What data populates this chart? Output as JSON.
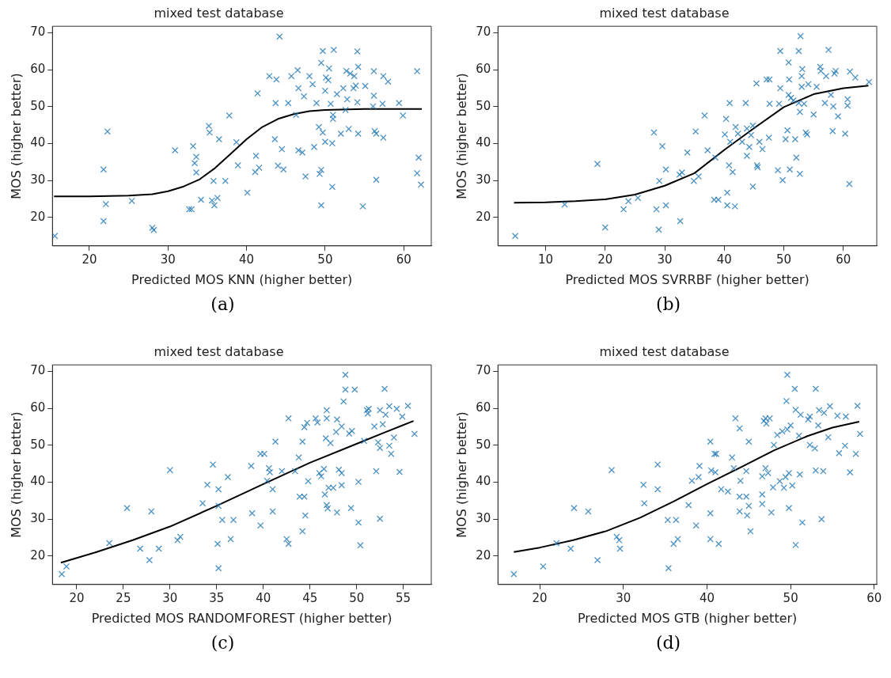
{
  "chart_data": [
    {
      "type": "scatter",
      "title": "mixed test database",
      "xlabel": "Predicted MOS KNN (higher better)",
      "ylabel": "MOS (higher better)",
      "annotations": [
        "(a)"
      ],
      "xlim": [
        15.3,
        63.5
      ],
      "ylim": [
        12.3,
        71.8
      ],
      "xticks": [
        20,
        30,
        40,
        50,
        60
      ],
      "yticks": [
        20,
        30,
        40,
        50,
        60,
        70
      ],
      "grid": false,
      "legend": false,
      "marker": "cross",
      "series": [
        {
          "color": "#1f77b4",
          "x": [
            15.6,
            21.8,
            22.3,
            22.1,
            21.8,
            25.4,
            28.0,
            28.2,
            30.9,
            33.2,
            33.6,
            33.4,
            33.6,
            32.7,
            33.0,
            34.2,
            35.2,
            35.3,
            35.8,
            35.6,
            35.9,
            36.3,
            36.5,
            37.3,
            37.8,
            38.7,
            38.9,
            40.1,
            41.2,
            41.1,
            41.6,
            41.4,
            42.9,
            43.8,
            44.2,
            43.7,
            43.6,
            44.5,
            44.0,
            44.7,
            45.3,
            45.7,
            46.5,
            46.6,
            46.3,
            46.6,
            47.1,
            47.5,
            47.3,
            48.0,
            48.4,
            48.9,
            48.6,
            49.3,
            49.5,
            49.5,
            49.7,
            49.5,
            50.5,
            50.1,
            50.4,
            50.0,
            50.7,
            49.2,
            49.7,
            50.0,
            50.9,
            51.0,
            51.0,
            50.9,
            51.1,
            51.5,
            52.3,
            52.6,
            53.0,
            52.0,
            52.8,
            52.7,
            53.2,
            53.6,
            53.9,
            53.7,
            54.2,
            54.1,
            54.1,
            54.2,
            54.8,
            55.1,
            56.2,
            56.2,
            56.1,
            56.3,
            56.5,
            56.5,
            57.4,
            58.0,
            57.3,
            57.4,
            59.4,
            59.9,
            61.7,
            61.9,
            61.7,
            62.2
          ],
          "values": [
            15.0,
            33.0,
            43.3,
            23.6,
            19.0,
            24.5,
            17.2,
            16.6,
            38.2,
            39.3,
            36.4,
            34.7,
            32.2,
            22.2,
            22.2,
            24.8,
            44.8,
            43.0,
            29.9,
            24.6,
            23.3,
            25.3,
            41.2,
            29.9,
            47.6,
            40.4,
            34.1,
            26.7,
            36.7,
            32.3,
            33.5,
            53.6,
            58.3,
            57.4,
            69.0,
            51.0,
            41.2,
            38.5,
            34.0,
            33.0,
            51.0,
            58.3,
            59.9,
            55.0,
            47.8,
            38.2,
            37.6,
            31.1,
            52.8,
            58.3,
            56.1,
            51.0,
            39.1,
            31.8,
            32.9,
            23.3,
            65.1,
            61.9,
            60.4,
            57.9,
            57.2,
            54.3,
            50.8,
            44.5,
            43.0,
            40.5,
            40.1,
            47.8,
            46.7,
            28.3,
            65.4,
            53.4,
            55.0,
            49.1,
            44.0,
            42.7,
            52.0,
            59.7,
            59.0,
            55.0,
            55.7,
            58.3,
            60.8,
            65.0,
            51.2,
            42.7,
            23.0,
            55.6,
            59.6,
            53.0,
            50.1,
            43.4,
            42.7,
            30.2,
            58.3,
            56.8,
            50.8,
            41.6,
            51.0,
            47.6,
            59.6,
            36.2,
            32.0,
            28.9
          ]
        },
        {
          "type": "line",
          "color": "#000000",
          "marker": "none",
          "line_style": "solid",
          "x": [
            15.5,
            20,
            25,
            28,
            30,
            32,
            34,
            36,
            38,
            40,
            42,
            44,
            46,
            48,
            50,
            55,
            62.3
          ],
          "values": [
            25.7,
            25.7,
            25.9,
            26.3,
            27.1,
            28.4,
            30.3,
            33.4,
            37.3,
            41.2,
            44.5,
            46.7,
            48.0,
            48.8,
            49.1,
            49.4,
            49.4
          ]
        }
      ]
    },
    {
      "type": "scatter",
      "title": "mixed test database",
      "xlabel": "Predicted MOS SVRRBF (higher better)",
      "ylabel": "MOS (higher better)",
      "annotations": [
        "(b)"
      ],
      "xlim": [
        2.0,
        65.6
      ],
      "ylim": [
        12.3,
        71.8
      ],
      "xticks": [
        10,
        20,
        30,
        40,
        50,
        60
      ],
      "yticks": [
        20,
        30,
        40,
        50,
        60,
        70
      ],
      "grid": false,
      "legend": false,
      "marker": "cross",
      "series": [
        {
          "color": "#1f77b4",
          "x": [
            4.9,
            13.2,
            18.7,
            20.0,
            23.1,
            23.9,
            25.5,
            28.2,
            28.6,
            29.0,
            29.1,
            29.6,
            30.2,
            30.2,
            32.6,
            32.5,
            32.9,
            33.8,
            34.9,
            35.7,
            35.2,
            36.7,
            37.2,
            38.5,
            38.3,
            39.0,
            40.3,
            40.1,
            40.5,
            40.5,
            40.8,
            41.4,
            41.0,
            40.9,
            41.8,
            41.9,
            42.3,
            43.0,
            43.6,
            43.8,
            44.2,
            43.8,
            44.8,
            44.5,
            44.8,
            45.5,
            45.6,
            45.4,
            45.9,
            46.4,
            47.1,
            47.6,
            47.5,
            47.6,
            49.0,
            49.2,
            49.4,
            49.4,
            49.8,
            50.3,
            50.6,
            50.8,
            50.9,
            50.8,
            51.2,
            51.0,
            51.6,
            51.9,
            52.1,
            52.5,
            52.8,
            52.7,
            52.5,
            53.0,
            53.1,
            52.7,
            53.0,
            53.4,
            53.7,
            53.9,
            54.1,
            55.0,
            55.5,
            56.1,
            56.2,
            56.9,
            57.1,
            57.5,
            57.9,
            58.2,
            58.3,
            58.5,
            58.7,
            59.1,
            60.3,
            60.7,
            60.7,
            61.0,
            61.1,
            62.0,
            64.3
          ],
          "values": [
            15.0,
            23.5,
            34.5,
            17.3,
            22.2,
            24.4,
            25.3,
            43.0,
            22.2,
            16.7,
            29.9,
            39.3,
            33.0,
            23.3,
            19.0,
            31.6,
            32.2,
            37.6,
            29.9,
            31.1,
            43.3,
            47.6,
            38.2,
            36.2,
            24.8,
            24.8,
            46.7,
            42.5,
            26.7,
            23.3,
            34.1,
            32.3,
            40.5,
            51.0,
            23.0,
            44.5,
            42.7,
            40.5,
            51.0,
            44.1,
            39.1,
            36.7,
            44.9,
            42.3,
            28.4,
            34.1,
            33.6,
            56.3,
            40.5,
            38.5,
            57.4,
            57.4,
            41.6,
            50.8,
            32.8,
            50.8,
            55.0,
            65.1,
            30.1,
            41.2,
            43.6,
            62.0,
            57.4,
            53.2,
            52.4,
            33.0,
            51.7,
            41.2,
            36.2,
            65.1,
            69.1,
            48.6,
            51.0,
            58.3,
            60.2,
            31.8,
            55.4,
            50.8,
            43.0,
            42.5,
            56.1,
            47.9,
            55.4,
            60.8,
            59.7,
            51.0,
            58.3,
            65.4,
            53.2,
            43.4,
            50.1,
            59.0,
            59.7,
            47.4,
            42.7,
            52.0,
            50.3,
            29.1,
            59.5,
            57.9,
            56.7
          ]
        },
        {
          "type": "line",
          "color": "#000000",
          "marker": "none",
          "line_style": "solid",
          "x": [
            4.7,
            10,
            15,
            20,
            25,
            30,
            35,
            40,
            45,
            50,
            55,
            60,
            64.2
          ],
          "values": [
            24.0,
            24.1,
            24.4,
            24.9,
            26.2,
            28.6,
            32.0,
            38.3,
            44.2,
            49.9,
            53.4,
            55.0,
            55.7
          ]
        }
      ]
    },
    {
      "type": "scatter",
      "title": "mixed test database",
      "xlabel": "Predicted MOS RANDOMFOREST (higher better)",
      "ylabel": "MOS (higher better)",
      "annotations": [
        "(c)"
      ],
      "xlim": [
        17.4,
        58.0
      ],
      "ylim": [
        12.3,
        71.8
      ],
      "xticks": [
        20,
        25,
        30,
        35,
        40,
        45,
        50,
        55
      ],
      "yticks": [
        20,
        30,
        40,
        50,
        60,
        70
      ],
      "grid": false,
      "legend": false,
      "marker": "cross",
      "series": [
        {
          "color": "#1f77b4",
          "x": [
            18.4,
            18.9,
            23.5,
            25.4,
            26.8,
            27.8,
            28.0,
            28.8,
            30.0,
            30.8,
            31.1,
            33.5,
            34.0,
            34.6,
            35.2,
            35.2,
            35.1,
            35.2,
            35.6,
            36.2,
            36.5,
            36.8,
            38.7,
            38.8,
            39.7,
            39.7,
            40.1,
            40.4,
            40.6,
            40.7,
            41.0,
            41.0,
            41.3,
            42.0,
            42.5,
            42.7,
            42.7,
            43.4,
            43.8,
            43.9,
            44.4,
            44.2,
            44.5,
            44.2,
            44.4,
            44.8,
            44.7,
            45.6,
            45.8,
            46.0,
            46.2,
            46.5,
            46.6,
            46.8,
            46.9,
            46.7,
            46.8,
            46.8,
            47.0,
            47.2,
            47.5,
            47.9,
            47.8,
            47.9,
            48.1,
            48.4,
            48.4,
            48.4,
            48.6,
            48.8,
            48.8,
            49.2,
            49.5,
            49.4,
            49.8,
            50.2,
            50.2,
            50.4,
            50.8,
            51.1,
            51.2,
            51.3,
            51.9,
            52.1,
            52.3,
            52.5,
            52.5,
            52.5,
            52.8,
            53.0,
            53.1,
            53.5,
            53.5,
            53.7,
            54.0,
            54.3,
            54.6,
            54.9,
            55.5,
            56.2
          ],
          "values": [
            15.1,
            17.2,
            23.5,
            33.0,
            22.0,
            18.9,
            32.1,
            22.0,
            43.3,
            24.3,
            25.2,
            34.3,
            39.3,
            44.8,
            38.1,
            33.6,
            23.3,
            16.7,
            29.8,
            41.4,
            24.6,
            29.8,
            44.4,
            31.6,
            28.3,
            47.7,
            47.7,
            40.4,
            43.8,
            42.7,
            38.1,
            32.1,
            51.0,
            43.0,
            24.6,
            23.3,
            57.3,
            43.0,
            46.7,
            36.1,
            36.1,
            26.7,
            31.0,
            51.0,
            54.9,
            40.3,
            56.1,
            57.3,
            56.2,
            42.5,
            41.6,
            43.6,
            36.7,
            33.8,
            32.9,
            51.9,
            57.3,
            59.5,
            38.5,
            50.6,
            38.5,
            57.0,
            53.6,
            31.8,
            43.4,
            42.5,
            39.2,
            55.1,
            61.9,
            69.1,
            65.1,
            53.2,
            53.9,
            33.0,
            65.1,
            40.1,
            29.1,
            22.9,
            51.2,
            59.5,
            58.6,
            59.9,
            55.1,
            43.0,
            50.8,
            49.3,
            30.1,
            59.5,
            55.7,
            65.3,
            58.3,
            60.6,
            49.9,
            47.7,
            52.1,
            59.9,
            42.8,
            57.8,
            60.7,
            53.1
          ]
        },
        {
          "type": "line",
          "color": "#000000",
          "marker": "none",
          "line_style": "solid",
          "x": [
            18.3,
            22,
            26,
            30,
            35,
            40,
            45,
            50,
            53,
            56.1
          ],
          "values": [
            18.2,
            21.0,
            24.3,
            28.0,
            33.6,
            39.5,
            45.3,
            50.4,
            53.5,
            56.6
          ]
        }
      ]
    },
    {
      "type": "scatter",
      "title": "mixed test database",
      "xlabel": "Predicted MOS GTB (higher better)",
      "ylabel": "MOS (higher better)",
      "annotations": [
        "(d)"
      ],
      "xlim": [
        15.0,
        60.3
      ],
      "ylim": [
        12.3,
        71.8
      ],
      "xticks": [
        20,
        30,
        40,
        50,
        60
      ],
      "yticks": [
        20,
        30,
        40,
        50,
        60,
        70
      ],
      "grid": false,
      "legend": false,
      "marker": "cross",
      "series": [
        {
          "color": "#1f77b4",
          "x": [
            16.9,
            20.4,
            22.0,
            23.7,
            24.1,
            25.8,
            26.9,
            28.6,
            29.2,
            29.5,
            29.6,
            32.4,
            32.5,
            34.1,
            34.1,
            35.3,
            35.4,
            36.0,
            36.3,
            36.5,
            37.8,
            38.2,
            38.7,
            39.0,
            39.1,
            40.4,
            40.4,
            40.4,
            40.5,
            40.9,
            41.1,
            41.0,
            41.4,
            41.7,
            42.5,
            43.0,
            43.2,
            43.4,
            43.9,
            43.9,
            43.9,
            44.0,
            44.7,
            44.7,
            44.8,
            45.0,
            45.0,
            45.2,
            46.6,
            46.6,
            46.6,
            46.8,
            47.0,
            47.0,
            47.1,
            47.3,
            47.5,
            47.7,
            47.9,
            48.0,
            48.4,
            48.7,
            49.0,
            49.2,
            49.4,
            49.5,
            49.6,
            49.6,
            49.8,
            49.8,
            50.0,
            50.2,
            50.5,
            50.6,
            50.6,
            51.0,
            51.2,
            51.1,
            51.4,
            52.1,
            52.3,
            52.3,
            52.9,
            53.0,
            53.0,
            53.3,
            53.4,
            53.7,
            53.9,
            54.0,
            54.5,
            54.7,
            55.6,
            55.8,
            56.5,
            56.6,
            57.1,
            57.8,
            58.0,
            58.3
          ],
          "values": [
            15.1,
            17.2,
            23.5,
            22.0,
            33.0,
            32.1,
            18.9,
            43.3,
            25.2,
            24.3,
            22.0,
            39.3,
            34.3,
            44.8,
            38.1,
            29.8,
            16.7,
            23.3,
            29.8,
            24.6,
            33.8,
            40.4,
            28.3,
            41.4,
            44.4,
            51.0,
            31.6,
            24.6,
            43.2,
            47.7,
            47.7,
            42.7,
            23.3,
            38.1,
            37.5,
            46.7,
            43.8,
            57.3,
            54.6,
            36.1,
            32.1,
            40.4,
            36.1,
            43.0,
            31.0,
            33.6,
            51.0,
            26.7,
            36.7,
            34.1,
            41.6,
            56.6,
            57.3,
            43.8,
            55.9,
            42.5,
            57.3,
            31.8,
            38.6,
            50.1,
            52.8,
            40.3,
            53.8,
            38.5,
            41.4,
            62.0,
            69.1,
            54.3,
            42.5,
            33.0,
            55.4,
            39.1,
            65.3,
            23.0,
            59.6,
            52.6,
            58.3,
            42.1,
            29.1,
            57.0,
            57.8,
            50.1,
            49.2,
            65.3,
            43.2,
            55.4,
            59.5,
            30.0,
            43.0,
            58.8,
            52.2,
            60.6,
            58.0,
            47.9,
            49.9,
            57.8,
            42.7,
            47.7,
            60.7,
            53.1
          ]
        },
        {
          "type": "line",
          "color": "#000000",
          "marker": "none",
          "line_style": "solid",
          "x": [
            16.9,
            20,
            24,
            28,
            32,
            36,
            40,
            44,
            48,
            52,
            55,
            58.2
          ],
          "values": [
            21.1,
            22.3,
            24.3,
            26.8,
            30.4,
            34.8,
            39.5,
            44.0,
            48.6,
            52.5,
            54.8,
            56.4
          ]
        }
      ]
    }
  ]
}
